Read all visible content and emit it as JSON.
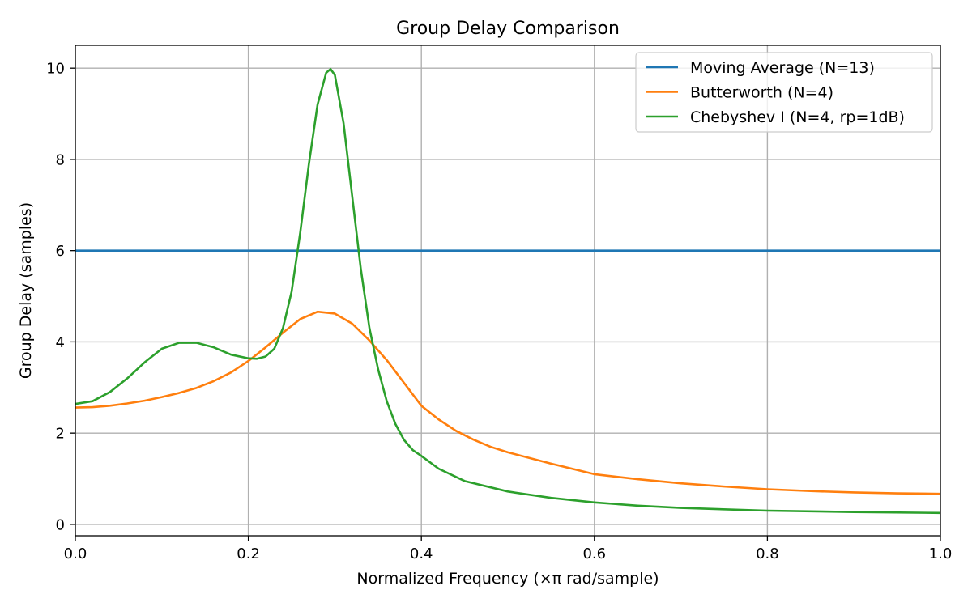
{
  "chart_data": {
    "type": "line",
    "title": "Group Delay Comparison",
    "xlabel": "Normalized Frequency (×π rad/sample)",
    "ylabel": "Group Delay (samples)",
    "xlim": [
      0,
      1
    ],
    "ylim": [
      -0.25,
      10.5
    ],
    "xticks": [
      0,
      0.2,
      0.4,
      0.6,
      0.8,
      1.0
    ],
    "xtick_labels": [
      "0.0",
      "0.2",
      "0.4",
      "0.6",
      "0.8",
      "1.0"
    ],
    "yticks": [
      0,
      2,
      4,
      6,
      8,
      10
    ],
    "ytick_labels": [
      "0",
      "2",
      "4",
      "6",
      "8",
      "10"
    ],
    "grid": true,
    "legend_position": "top-right",
    "series": [
      {
        "name": "Moving Average (N=13)",
        "color": "#1f77b4",
        "x": [
          0,
          1.0
        ],
        "y": [
          6,
          6
        ]
      },
      {
        "name": "Butterworth (N=4)",
        "color": "#ff7f0e",
        "x": [
          0,
          0.02,
          0.04,
          0.06,
          0.08,
          0.1,
          0.12,
          0.14,
          0.16,
          0.18,
          0.2,
          0.22,
          0.24,
          0.26,
          0.28,
          0.3,
          0.32,
          0.34,
          0.36,
          0.38,
          0.4,
          0.42,
          0.44,
          0.46,
          0.48,
          0.5,
          0.55,
          0.6,
          0.65,
          0.7,
          0.75,
          0.8,
          0.85,
          0.9,
          0.95,
          1.0
        ],
        "y": [
          2.56,
          2.57,
          2.6,
          2.65,
          2.71,
          2.79,
          2.88,
          2.99,
          3.14,
          3.33,
          3.58,
          3.88,
          4.2,
          4.5,
          4.66,
          4.62,
          4.4,
          4.03,
          3.6,
          3.1,
          2.6,
          2.3,
          2.05,
          1.86,
          1.7,
          1.58,
          1.33,
          1.1,
          0.99,
          0.9,
          0.83,
          0.77,
          0.73,
          0.7,
          0.68,
          0.67
        ]
      },
      {
        "name": "Chebyshev I (N=4, rp=1dB)",
        "color": "#2ca02c",
        "x": [
          0,
          0.02,
          0.04,
          0.06,
          0.08,
          0.1,
          0.12,
          0.14,
          0.16,
          0.18,
          0.2,
          0.21,
          0.22,
          0.23,
          0.24,
          0.25,
          0.26,
          0.27,
          0.28,
          0.29,
          0.295,
          0.3,
          0.31,
          0.32,
          0.33,
          0.34,
          0.35,
          0.36,
          0.37,
          0.38,
          0.39,
          0.4,
          0.42,
          0.45,
          0.5,
          0.55,
          0.6,
          0.65,
          0.7,
          0.8,
          0.9,
          1.0
        ],
        "y": [
          2.64,
          2.7,
          2.9,
          3.2,
          3.55,
          3.85,
          3.98,
          3.98,
          3.88,
          3.72,
          3.64,
          3.63,
          3.68,
          3.85,
          4.3,
          5.1,
          6.4,
          7.9,
          9.2,
          9.9,
          9.98,
          9.85,
          8.8,
          7.2,
          5.6,
          4.3,
          3.4,
          2.7,
          2.2,
          1.85,
          1.63,
          1.5,
          1.22,
          0.95,
          0.72,
          0.58,
          0.48,
          0.41,
          0.36,
          0.3,
          0.27,
          0.25
        ]
      }
    ]
  }
}
